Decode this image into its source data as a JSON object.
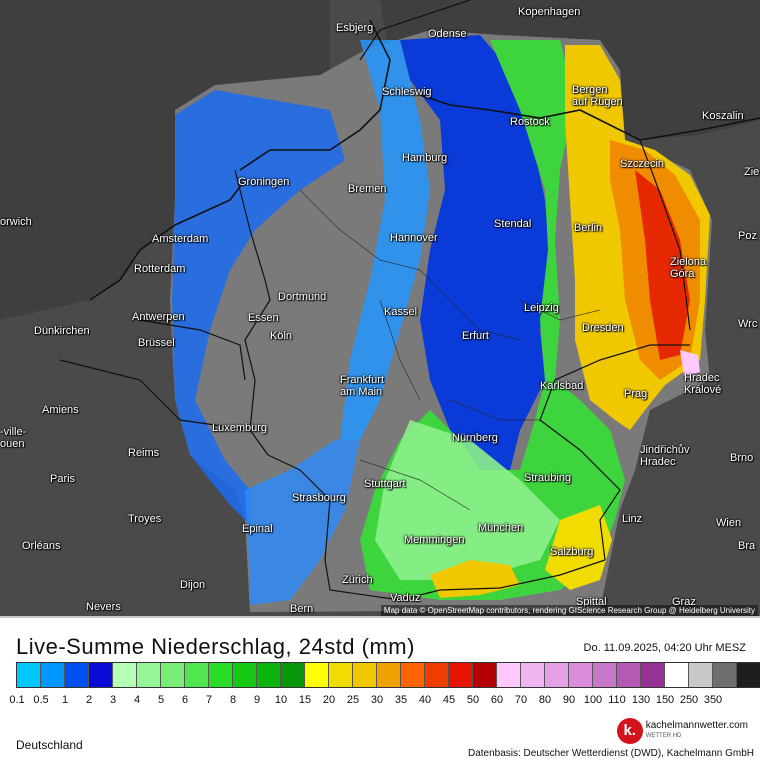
{
  "map": {
    "attribution": "Map data © OpenStreetMap contributors, rendering GIScience Research Group @ Heidelberg University",
    "background_color": "#4a4a4a",
    "no_data_color": "#777777",
    "cities": [
      {
        "name": "Kopenhagen"
      },
      {
        "name": "Esbjerg"
      },
      {
        "name": "Odense"
      },
      {
        "name": "Schleswig"
      },
      {
        "name": "Bergen\nauf Rügen"
      },
      {
        "name": "Rostock"
      },
      {
        "name": "Koszalin"
      },
      {
        "name": "Hamburg"
      },
      {
        "name": "Szczecin"
      },
      {
        "name": "Groningen"
      },
      {
        "name": "Bremen"
      },
      {
        "name": "Amsterdam"
      },
      {
        "name": "Stendal"
      },
      {
        "name": "Berlin"
      },
      {
        "name": "Hannover"
      },
      {
        "name": "Rotterdam"
      },
      {
        "name": "Zielona\nGóra"
      },
      {
        "name": "Dortmund"
      },
      {
        "name": "Antwerpen"
      },
      {
        "name": "Essen"
      },
      {
        "name": "Kassel"
      },
      {
        "name": "Leipzig"
      },
      {
        "name": "Dünkirchen"
      },
      {
        "name": "Brüssel"
      },
      {
        "name": "Köln"
      },
      {
        "name": "Erfurt"
      },
      {
        "name": "Dresden"
      },
      {
        "name": "Hradec\nKrálové"
      },
      {
        "name": "Frankfurt\nam Main"
      },
      {
        "name": "Karlsbad"
      },
      {
        "name": "Prag"
      },
      {
        "name": "Amiens"
      },
      {
        "name": "Luxemburg"
      },
      {
        "name": "Nürnberg"
      },
      {
        "name": "Jindřichův\nHradec"
      },
      {
        "name": "Brno"
      },
      {
        "name": "Reims"
      },
      {
        "name": "Paris"
      },
      {
        "name": "Straubing"
      },
      {
        "name": "Stuttgart"
      },
      {
        "name": "Strasbourg"
      },
      {
        "name": "Troyes"
      },
      {
        "name": "Linz"
      },
      {
        "name": "Wien"
      },
      {
        "name": "Epinal"
      },
      {
        "name": "München"
      },
      {
        "name": "Memmingen"
      },
      {
        "name": "Orléans"
      },
      {
        "name": "Salzburg"
      },
      {
        "name": "Zürich"
      },
      {
        "name": "Dijon"
      },
      {
        "name": "Vaduz"
      },
      {
        "name": "Nevers"
      },
      {
        "name": "Bern"
      },
      {
        "name": "Spittal"
      },
      {
        "name": "Graz"
      },
      {
        "name": "orwich"
      },
      {
        "name": "Poz"
      },
      {
        "name": "Wrc"
      },
      {
        "name": "Bra"
      },
      {
        "name": "-ville-\nouen"
      },
      {
        "name": "Zie"
      }
    ]
  },
  "legend": {
    "title": "Live-Summe Niederschlag, 24std (mm)",
    "timestamp": "Do. 11.09.2025, 04:20 Uhr MESZ",
    "region": "Deutschland",
    "source": "Datenbasis: Deutscher Wetterdienst (DWD), Kachelmann GmbH",
    "logo_letter": "k.",
    "logo_name": "kachelmannwetter.com",
    "logo_sub": "WETTER HD",
    "classes": [
      {
        "label": "0.1",
        "color": "#00c8ff"
      },
      {
        "label": "0.5",
        "color": "#0096ff"
      },
      {
        "label": "1",
        "color": "#0050f0"
      },
      {
        "label": "2",
        "color": "#0a0ad2"
      },
      {
        "label": "3",
        "color": "#b4ffb4"
      },
      {
        "label": "4",
        "color": "#96f596"
      },
      {
        "label": "5",
        "color": "#78ee78"
      },
      {
        "label": "6",
        "color": "#50e650"
      },
      {
        "label": "7",
        "color": "#28dc28"
      },
      {
        "label": "8",
        "color": "#14c814"
      },
      {
        "label": "9",
        "color": "#0ab40a"
      },
      {
        "label": "10",
        "color": "#0a960a"
      },
      {
        "label": "15",
        "color": "#ffff00"
      },
      {
        "label": "20",
        "color": "#f0dc00"
      },
      {
        "label": "25",
        "color": "#f0c800"
      },
      {
        "label": "30",
        "color": "#f0a000"
      },
      {
        "label": "35",
        "color": "#ff6400"
      },
      {
        "label": "40",
        "color": "#f03c00"
      },
      {
        "label": "45",
        "color": "#e61400"
      },
      {
        "label": "50",
        "color": "#b40000"
      },
      {
        "label": "60",
        "color": "#ffc8ff"
      },
      {
        "label": "70",
        "color": "#f0b4f0"
      },
      {
        "label": "80",
        "color": "#e6a0e6"
      },
      {
        "label": "90",
        "color": "#dc8cdc"
      },
      {
        "label": "100",
        "color": "#c878c8"
      },
      {
        "label": "110",
        "color": "#b45ab4"
      },
      {
        "label": "130",
        "color": "#963296"
      },
      {
        "label": "150",
        "color": "#ffffff"
      },
      {
        "label": "250",
        "color": "#c8c8c8"
      },
      {
        "label": "350",
        "color": "#6e6e6e"
      },
      {
        "label": "",
        "color": "#1e1e1e"
      }
    ]
  }
}
